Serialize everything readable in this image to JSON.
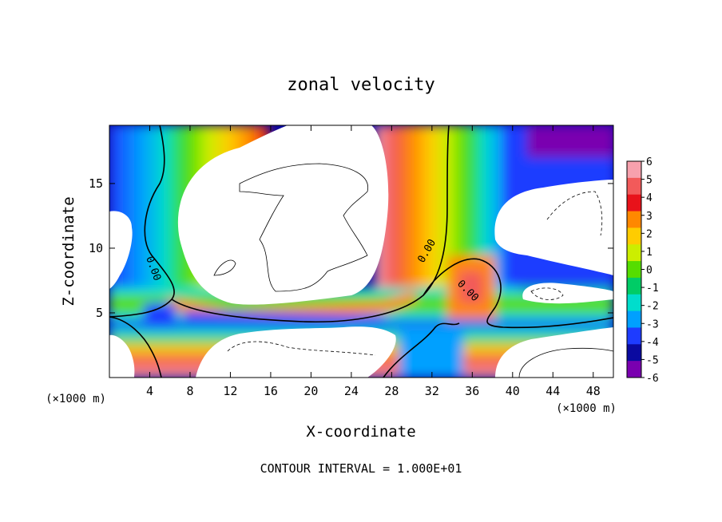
{
  "chart_data": {
    "type": "heatmap",
    "title": "zonal velocity",
    "xlabel": "X-coordinate",
    "ylabel": "Z-coordinate",
    "x_unit_left": "(×1000 m)",
    "x_unit_right": "(×1000 m)",
    "xlim": [
      0,
      50
    ],
    "ylim": [
      0,
      19.5
    ],
    "x_ticks": [
      4,
      8,
      12,
      16,
      20,
      24,
      28,
      32,
      36,
      40,
      44,
      48
    ],
    "y_ticks": [
      5,
      10,
      15
    ],
    "colorbar": {
      "ticks": [
        6,
        5,
        4,
        3,
        2,
        1,
        0,
        -1,
        -2,
        -3,
        -4,
        -5,
        -6
      ],
      "colors": [
        "#f7a1ad",
        "#f25a5a",
        "#e8121a",
        "#ff8800",
        "#ffcc00",
        "#ccee00",
        "#55dd00",
        "#00cc66",
        "#00ddcc",
        "#00a0ff",
        "#1e3cff",
        "#0a0aa0",
        "#7a00b0"
      ]
    },
    "contour_levels": [
      {
        "value": 0,
        "label": "0.00"
      }
    ],
    "annotation": "CONTOUR INTERVAL = 1.000E+01"
  }
}
